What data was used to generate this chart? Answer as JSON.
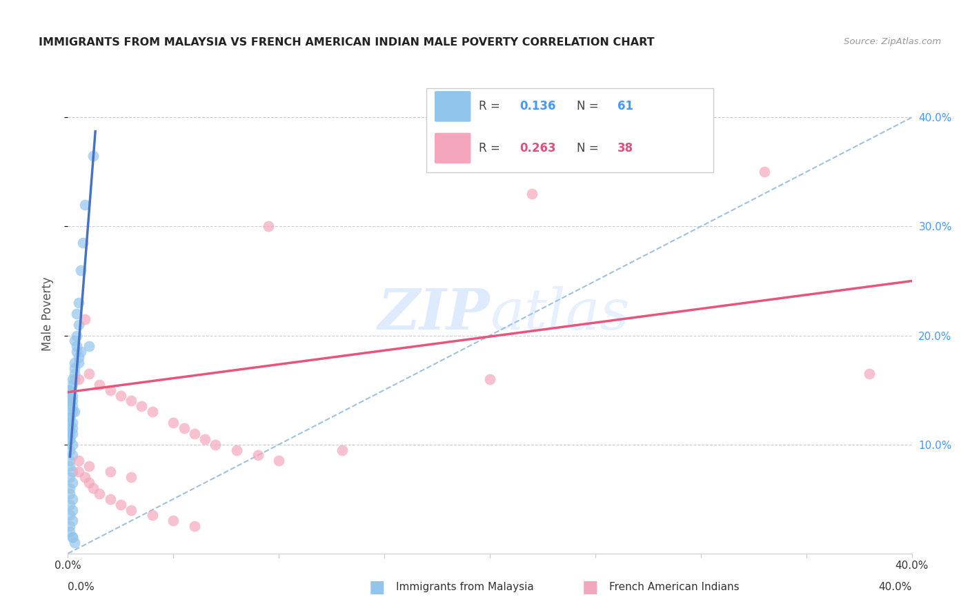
{
  "title": "IMMIGRANTS FROM MALAYSIA VS FRENCH AMERICAN INDIAN MALE POVERTY CORRELATION CHART",
  "source": "Source: ZipAtlas.com",
  "ylabel": "Male Poverty",
  "xlim": [
    0,
    0.4
  ],
  "ylim": [
    0,
    0.44
  ],
  "series1_label": "Immigrants from Malaysia",
  "series2_label": "French American Indians",
  "color1": "#92C5EC",
  "color2": "#F4A7BC",
  "trendline1_color": "#4472C4",
  "trendline2_color": "#E8547A",
  "dashed_line_color": "#A0C0E0",
  "watermark_zip": "ZIP",
  "watermark_atlas": "atlas",
  "legend_r1_val": "0.136",
  "legend_n1_val": "61",
  "legend_r2_val": "0.263",
  "legend_n2_val": "38",
  "blue_val_color": "#4499FF",
  "pink_val_color": "#E05080",
  "right_tick_color": "#4499FF",
  "blue_x": [
    0.002,
    0.003,
    0.001,
    0.002,
    0.001,
    0.002,
    0.003,
    0.001,
    0.002,
    0.001,
    0.002,
    0.001,
    0.002,
    0.001,
    0.002,
    0.001,
    0.001,
    0.002,
    0.001,
    0.002,
    0.001,
    0.001,
    0.002,
    0.001,
    0.002,
    0.001,
    0.002,
    0.001,
    0.001,
    0.002,
    0.001,
    0.001,
    0.002,
    0.001,
    0.002,
    0.001,
    0.001,
    0.002,
    0.001,
    0.001,
    0.003,
    0.002,
    0.003,
    0.004,
    0.003,
    0.004,
    0.005,
    0.004,
    0.005,
    0.003,
    0.004,
    0.005,
    0.006,
    0.01,
    0.012,
    0.007,
    0.006,
    0.008,
    0.005,
    0.003,
    0.002
  ],
  "blue_y": [
    0.155,
    0.16,
    0.15,
    0.145,
    0.14,
    0.135,
    0.13,
    0.125,
    0.12,
    0.115,
    0.11,
    0.105,
    0.1,
    0.095,
    0.09,
    0.085,
    0.08,
    0.075,
    0.07,
    0.065,
    0.06,
    0.055,
    0.05,
    0.045,
    0.04,
    0.035,
    0.03,
    0.025,
    0.02,
    0.015,
    0.15,
    0.145,
    0.14,
    0.135,
    0.13,
    0.125,
    0.12,
    0.115,
    0.11,
    0.105,
    0.165,
    0.16,
    0.175,
    0.185,
    0.195,
    0.2,
    0.21,
    0.22,
    0.18,
    0.17,
    0.19,
    0.175,
    0.185,
    0.19,
    0.365,
    0.285,
    0.26,
    0.32,
    0.23,
    0.01,
    0.015
  ],
  "pink_x": [
    0.005,
    0.008,
    0.01,
    0.015,
    0.02,
    0.025,
    0.03,
    0.035,
    0.04,
    0.05,
    0.055,
    0.06,
    0.065,
    0.07,
    0.08,
    0.09,
    0.1,
    0.13,
    0.2,
    0.22,
    0.33,
    0.38,
    0.005,
    0.008,
    0.01,
    0.012,
    0.015,
    0.02,
    0.025,
    0.03,
    0.04,
    0.05,
    0.06,
    0.005,
    0.01,
    0.02,
    0.03,
    0.095
  ],
  "pink_y": [
    0.16,
    0.215,
    0.165,
    0.155,
    0.15,
    0.145,
    0.14,
    0.135,
    0.13,
    0.12,
    0.115,
    0.11,
    0.105,
    0.1,
    0.095,
    0.09,
    0.085,
    0.095,
    0.16,
    0.33,
    0.35,
    0.165,
    0.075,
    0.07,
    0.065,
    0.06,
    0.055,
    0.05,
    0.045,
    0.04,
    0.035,
    0.03,
    0.025,
    0.085,
    0.08,
    0.075,
    0.07,
    0.3
  ],
  "blue_trend_x_start": 0.001,
  "blue_trend_x_end": 0.013,
  "pink_trend_x_start": 0.0,
  "pink_trend_x_end": 0.4,
  "pink_trend_y_start": 0.148,
  "pink_trend_y_end": 0.25
}
